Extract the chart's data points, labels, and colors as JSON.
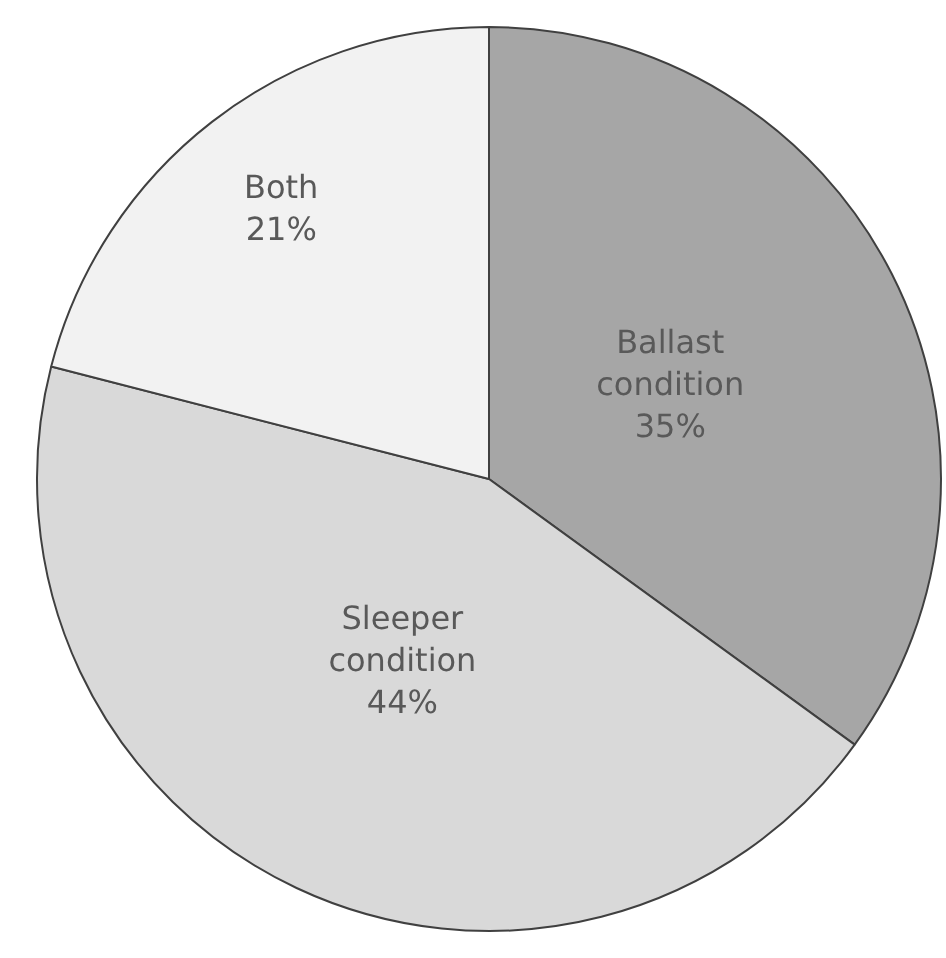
{
  "chart_data": {
    "type": "pie",
    "categories": [
      "Ballast condition",
      "Sleeper condition",
      "Both"
    ],
    "values": [
      35,
      44,
      21
    ],
    "value_labels": [
      "35%",
      "44%",
      "21%"
    ],
    "colors": [
      "#a6a6a6",
      "#d9d9d9",
      "#f2f2f2"
    ],
    "legend": false
  }
}
